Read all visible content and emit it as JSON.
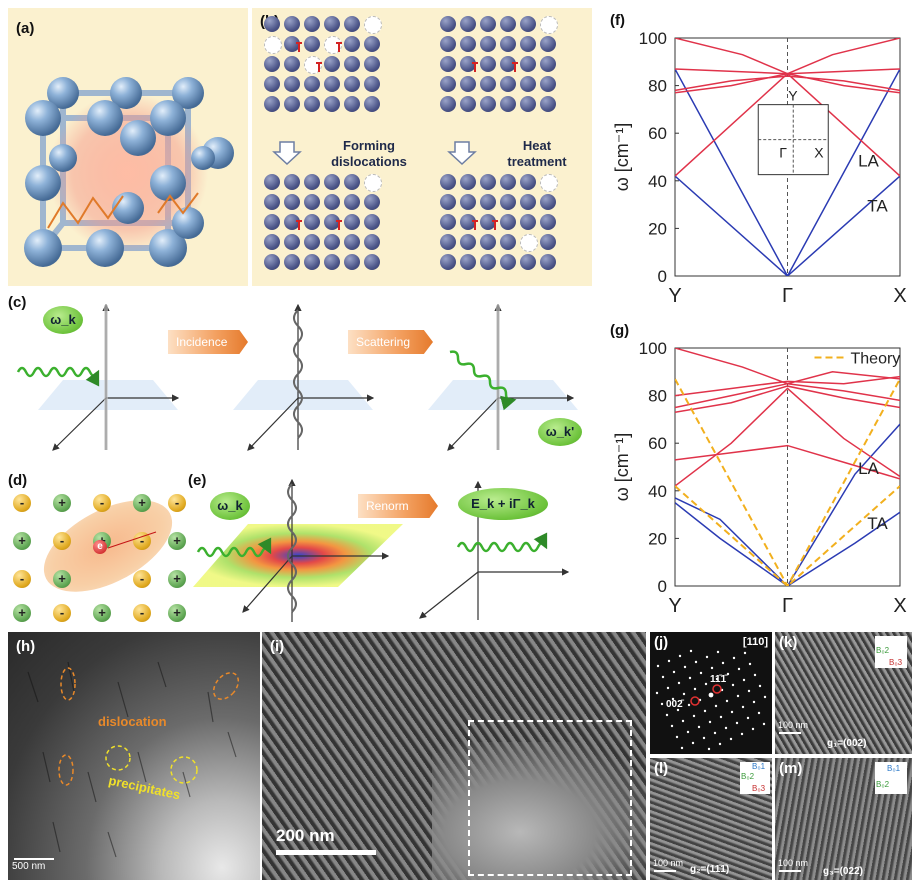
{
  "panels": {
    "a": "(a)",
    "b": "(b)",
    "c": "(c)",
    "d": "(d)",
    "e": "(e)",
    "f": "(f)",
    "g": "(g)",
    "h": "(h)",
    "i": "(i)",
    "j": "(j)",
    "k": "(k)",
    "l": "(l)",
    "m": "(m)"
  },
  "panel_b": {
    "step1": "Forming dislocations",
    "step1_line1": "Forming",
    "step1_line2": "dislocations",
    "step2_line1": "Heat",
    "step2_line2": "treatment"
  },
  "panel_c": {
    "incident_label": "ω_k",
    "arrow1": "Incidence",
    "arrow2": "Scattering",
    "scattered_label": "ω_k'"
  },
  "panel_d": {
    "electron": "e",
    "plus": "+",
    "minus": "-"
  },
  "panel_e": {
    "incident_label": "ω_k",
    "arrow": "Renorm",
    "result_label": "E_k + iΓ_k"
  },
  "panel_h": {
    "label_dislocation": "dislocation",
    "label_precipitates": "precipitates",
    "scalebar": "500 nm"
  },
  "panel_i": {
    "scalebar": "200 nm"
  },
  "panel_j": {
    "zone": "[110]",
    "spot1": "002̄",
    "spot2": "11̄1̄"
  },
  "panel_k": {
    "scalebar": "100 nm",
    "g": "g₁=(002)",
    "b2": "B₀2",
    "b3": "B₀3"
  },
  "panel_l": {
    "scalebar": "100 nm",
    "g": "g₂=(11̄1̄)",
    "b1": "B₀1",
    "b2": "B₀2",
    "b3": "B₀3"
  },
  "panel_m": {
    "scalebar": "100 nm",
    "g": "g₃=(022̄)",
    "b1": "B₀1",
    "b2": "B₀2"
  },
  "chart_data": [
    {
      "type": "line",
      "panel": "f",
      "ylabel": "ω [cm⁻¹]",
      "ylim": [
        0,
        100
      ],
      "yticks": [
        0,
        20,
        40,
        60,
        80,
        100
      ],
      "xticks": [
        "Y",
        "Γ",
        "X"
      ],
      "inset": {
        "top": "Y",
        "center": "Γ",
        "right": "X"
      },
      "annotations": [
        "LA",
        "TA"
      ],
      "series": [
        {
          "branch": "acoustic",
          "color": "#2b3bb3",
          "x": [
            0,
            0.5,
            1
          ],
          "y": [
            87,
            0,
            87
          ]
        },
        {
          "branch": "acoustic",
          "color": "#2b3bb3",
          "x": [
            0,
            0.5,
            1
          ],
          "y": [
            42,
            0,
            42
          ]
        },
        {
          "branch": "optical",
          "color": "#e0334a",
          "x": [
            0,
            0.5,
            1
          ],
          "y": [
            42,
            85,
            42
          ]
        },
        {
          "branch": "optical",
          "color": "#e0334a",
          "x": [
            0,
            0.5,
            1
          ],
          "y": [
            87,
            85,
            87
          ]
        },
        {
          "branch": "optical",
          "color": "#e0334a",
          "x": [
            0,
            0.25,
            0.5,
            0.75,
            1
          ],
          "y": [
            77,
            80,
            85,
            80,
            77
          ]
        },
        {
          "branch": "optical",
          "color": "#e0334a",
          "x": [
            0,
            0.25,
            0.5,
            0.75,
            1
          ],
          "y": [
            78,
            82,
            84,
            82,
            78
          ]
        },
        {
          "branch": "optical",
          "color": "#e0334a",
          "x": [
            0,
            0.3,
            0.5,
            0.7,
            1
          ],
          "y": [
            100,
            93,
            85,
            93,
            100
          ]
        }
      ]
    },
    {
      "type": "line",
      "panel": "g",
      "ylabel": "ω [cm⁻¹]",
      "ylim": [
        0,
        100
      ],
      "yticks": [
        0,
        20,
        40,
        60,
        80,
        100
      ],
      "xticks": [
        "Y",
        "Γ",
        "X"
      ],
      "legend": [
        "Theory"
      ],
      "annotations": [
        "LA",
        "TA"
      ],
      "series": [
        {
          "branch": "acoustic",
          "color": "#2b3bb3",
          "x": [
            0,
            0.2,
            0.5,
            0.8,
            1
          ],
          "y": [
            37,
            28,
            0,
            47,
            68
          ]
        },
        {
          "branch": "acoustic",
          "color": "#2b3bb3",
          "x": [
            0,
            0.2,
            0.5,
            0.8,
            1
          ],
          "y": [
            35,
            20,
            0,
            18,
            31
          ]
        },
        {
          "branch": "optical",
          "color": "#e0334a",
          "x": [
            0,
            0.25,
            0.5,
            0.75,
            1
          ],
          "y": [
            53,
            56,
            59,
            52,
            45
          ]
        },
        {
          "branch": "optical",
          "color": "#e0334a",
          "x": [
            0,
            0.25,
            0.5,
            0.75,
            1
          ],
          "y": [
            73,
            77,
            84,
            79,
            75
          ]
        },
        {
          "branch": "optical",
          "color": "#e0334a",
          "x": [
            0,
            0.25,
            0.5,
            0.75,
            1
          ],
          "y": [
            75,
            80,
            85,
            82,
            78
          ]
        },
        {
          "branch": "optical",
          "color": "#e0334a",
          "x": [
            0,
            0.25,
            0.5,
            0.75,
            1
          ],
          "y": [
            80,
            83,
            86,
            85,
            88
          ]
        },
        {
          "branch": "optical",
          "color": "#e0334a",
          "x": [
            0,
            0.3,
            0.5,
            0.7,
            1
          ],
          "y": [
            100,
            92,
            85,
            90,
            87
          ]
        },
        {
          "branch": "optical",
          "color": "#e0334a",
          "x": [
            0,
            0.25,
            0.5,
            0.75,
            1
          ],
          "y": [
            42,
            60,
            83,
            62,
            46
          ]
        },
        {
          "name": "Theory",
          "branch": "theory",
          "color": "#f2b01e",
          "dashed": true,
          "x": [
            0,
            0.5,
            1
          ],
          "y": [
            87,
            0,
            87
          ]
        },
        {
          "name": "Theory",
          "branch": "theory",
          "color": "#f2b01e",
          "dashed": true,
          "x": [
            0,
            0.5,
            1
          ],
          "y": [
            42,
            0,
            42
          ]
        }
      ]
    }
  ]
}
